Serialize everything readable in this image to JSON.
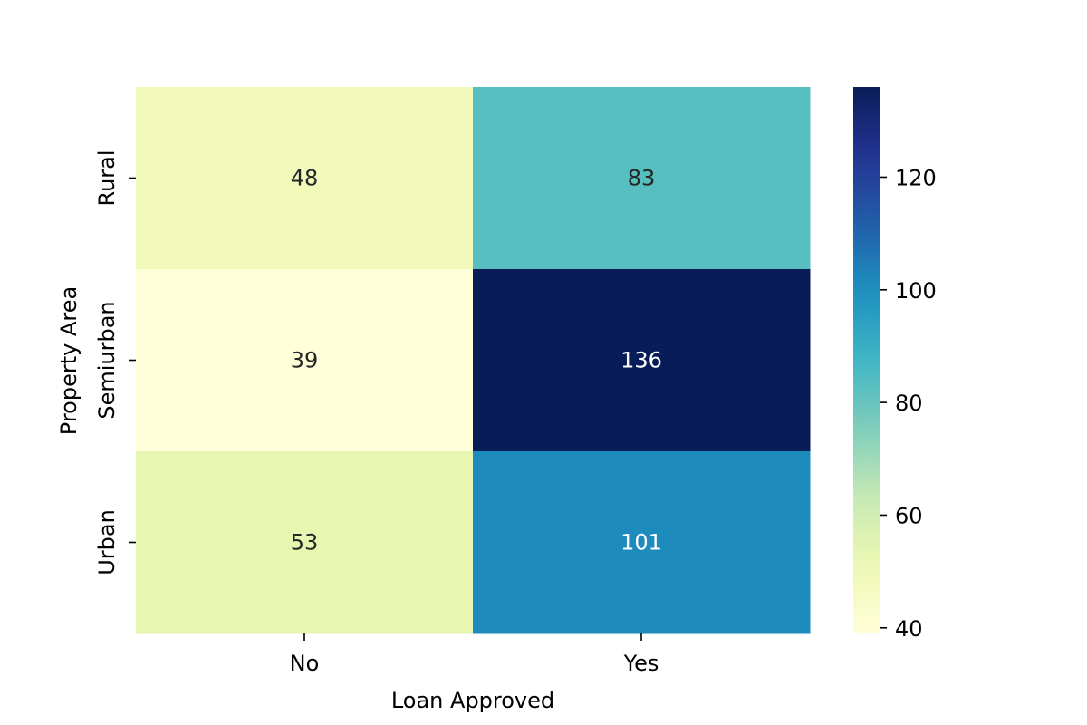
{
  "chart_data": {
    "type": "heatmap",
    "title": "",
    "xlabel": "Loan Approved",
    "ylabel": "Property Area",
    "x_categories": [
      "No",
      "Yes"
    ],
    "y_categories": [
      "Rural",
      "Semiurban",
      "Urban"
    ],
    "values": [
      [
        48,
        83
      ],
      [
        39,
        136
      ],
      [
        53,
        101
      ]
    ],
    "colormap": "YlGnBu",
    "color_range": [
      39,
      136
    ],
    "colorbar_ticks": [
      40,
      60,
      80,
      100,
      120
    ],
    "colorbar_tick_labels": [
      "40",
      "60",
      "80",
      "100",
      "120"
    ],
    "annotations": true
  }
}
